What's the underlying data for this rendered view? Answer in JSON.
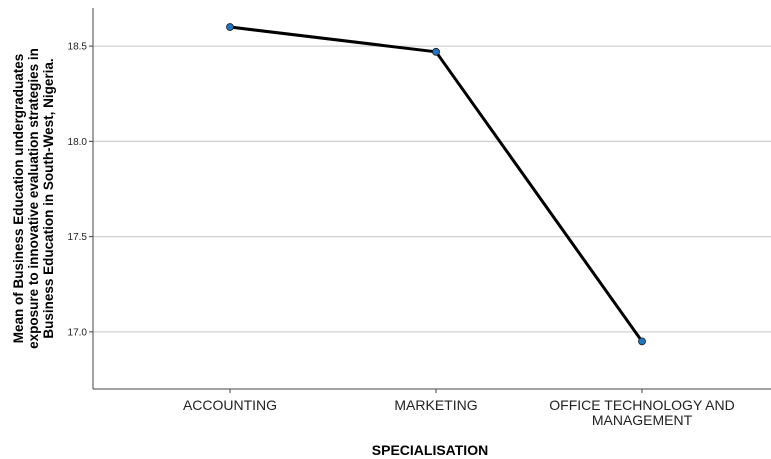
{
  "chart_data": {
    "type": "line",
    "title": "",
    "xlabel": "SPECIALISATION",
    "ylabel_lines": [
      "Mean of Business Education undergraduates",
      "exposure to innovative evaluation strategies in",
      "Business Education in South-West, Nigeria."
    ],
    "categories": [
      [
        "ACCOUNTING"
      ],
      [
        "MARKETING"
      ],
      [
        "OFFICE TECHNOLOGY AND",
        "MANAGEMENT"
      ]
    ],
    "values": [
      18.6,
      18.47,
      16.95
    ],
    "ylim": [
      16.7,
      18.7
    ],
    "yticks": [
      {
        "value": 17.0,
        "label": "17.0"
      },
      {
        "value": 17.5,
        "label": "17.5"
      },
      {
        "value": 18.0,
        "label": "18.0"
      },
      {
        "value": 18.5,
        "label": "18.5"
      }
    ],
    "grid": true,
    "colors": {
      "line": "#000000",
      "marker": "#1f77c4",
      "grid": "#d0d0d0",
      "axis": "#444444"
    }
  }
}
